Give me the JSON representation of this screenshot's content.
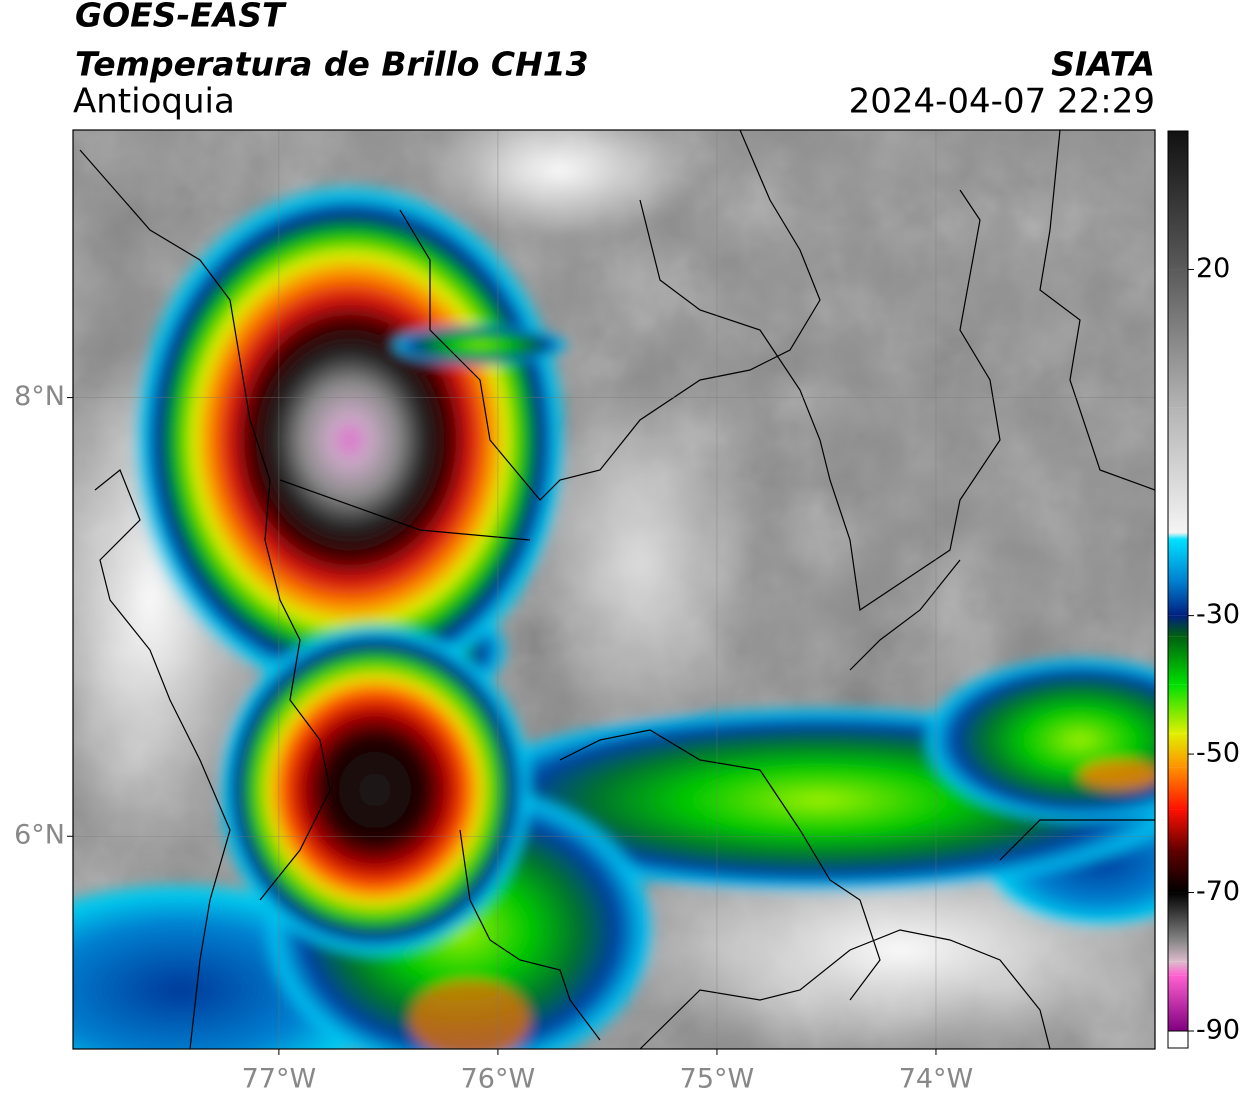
{
  "chart_data": {
    "type": "map",
    "title": "GOES-EAST",
    "subtitle": "Temperatura de Brillo CH13",
    "region": "Antioquia",
    "source": "SIATA",
    "datetime": "2024-04-07 22:29",
    "xlim": [
      -77.94,
      -73.0
    ],
    "ylim": [
      5.03,
      9.22
    ],
    "xticks": [
      {
        "value": -77,
        "label": "77°W"
      },
      {
        "value": -76,
        "label": "76°W"
      },
      {
        "value": -75,
        "label": "75°W"
      },
      {
        "value": -74,
        "label": "74°W"
      }
    ],
    "yticks": [
      {
        "value": 6,
        "label": "6°N"
      },
      {
        "value": 8,
        "label": "8°N"
      }
    ],
    "grid": true,
    "colorbar": {
      "clim": [
        -90,
        40
      ],
      "ticks": [
        20,
        -30,
        -50,
        -70,
        -90
      ],
      "under_color": "#ffffff",
      "colormap": [
        {
          "value": 40,
          "color": "#111111"
        },
        {
          "value": 20,
          "color": "#5a5a5a"
        },
        {
          "value": 0,
          "color": "#b4b4b4"
        },
        {
          "value": -18,
          "color": "#f4f4f4"
        },
        {
          "value": -19,
          "color": "#00e0ff"
        },
        {
          "value": -25,
          "color": "#0080d0"
        },
        {
          "value": -30,
          "color": "#002080"
        },
        {
          "value": -33,
          "color": "#006010"
        },
        {
          "value": -40,
          "color": "#00e000"
        },
        {
          "value": -47,
          "color": "#e0f000"
        },
        {
          "value": -52,
          "color": "#ff9000"
        },
        {
          "value": -58,
          "color": "#ff1000"
        },
        {
          "value": -64,
          "color": "#600000"
        },
        {
          "value": -70,
          "color": "#000000"
        },
        {
          "value": -77,
          "color": "#888888"
        },
        {
          "value": -80,
          "color": "#ddbbcc"
        },
        {
          "value": -82,
          "color": "#ff60d0"
        },
        {
          "value": -90,
          "color": "#800080"
        }
      ]
    }
  }
}
